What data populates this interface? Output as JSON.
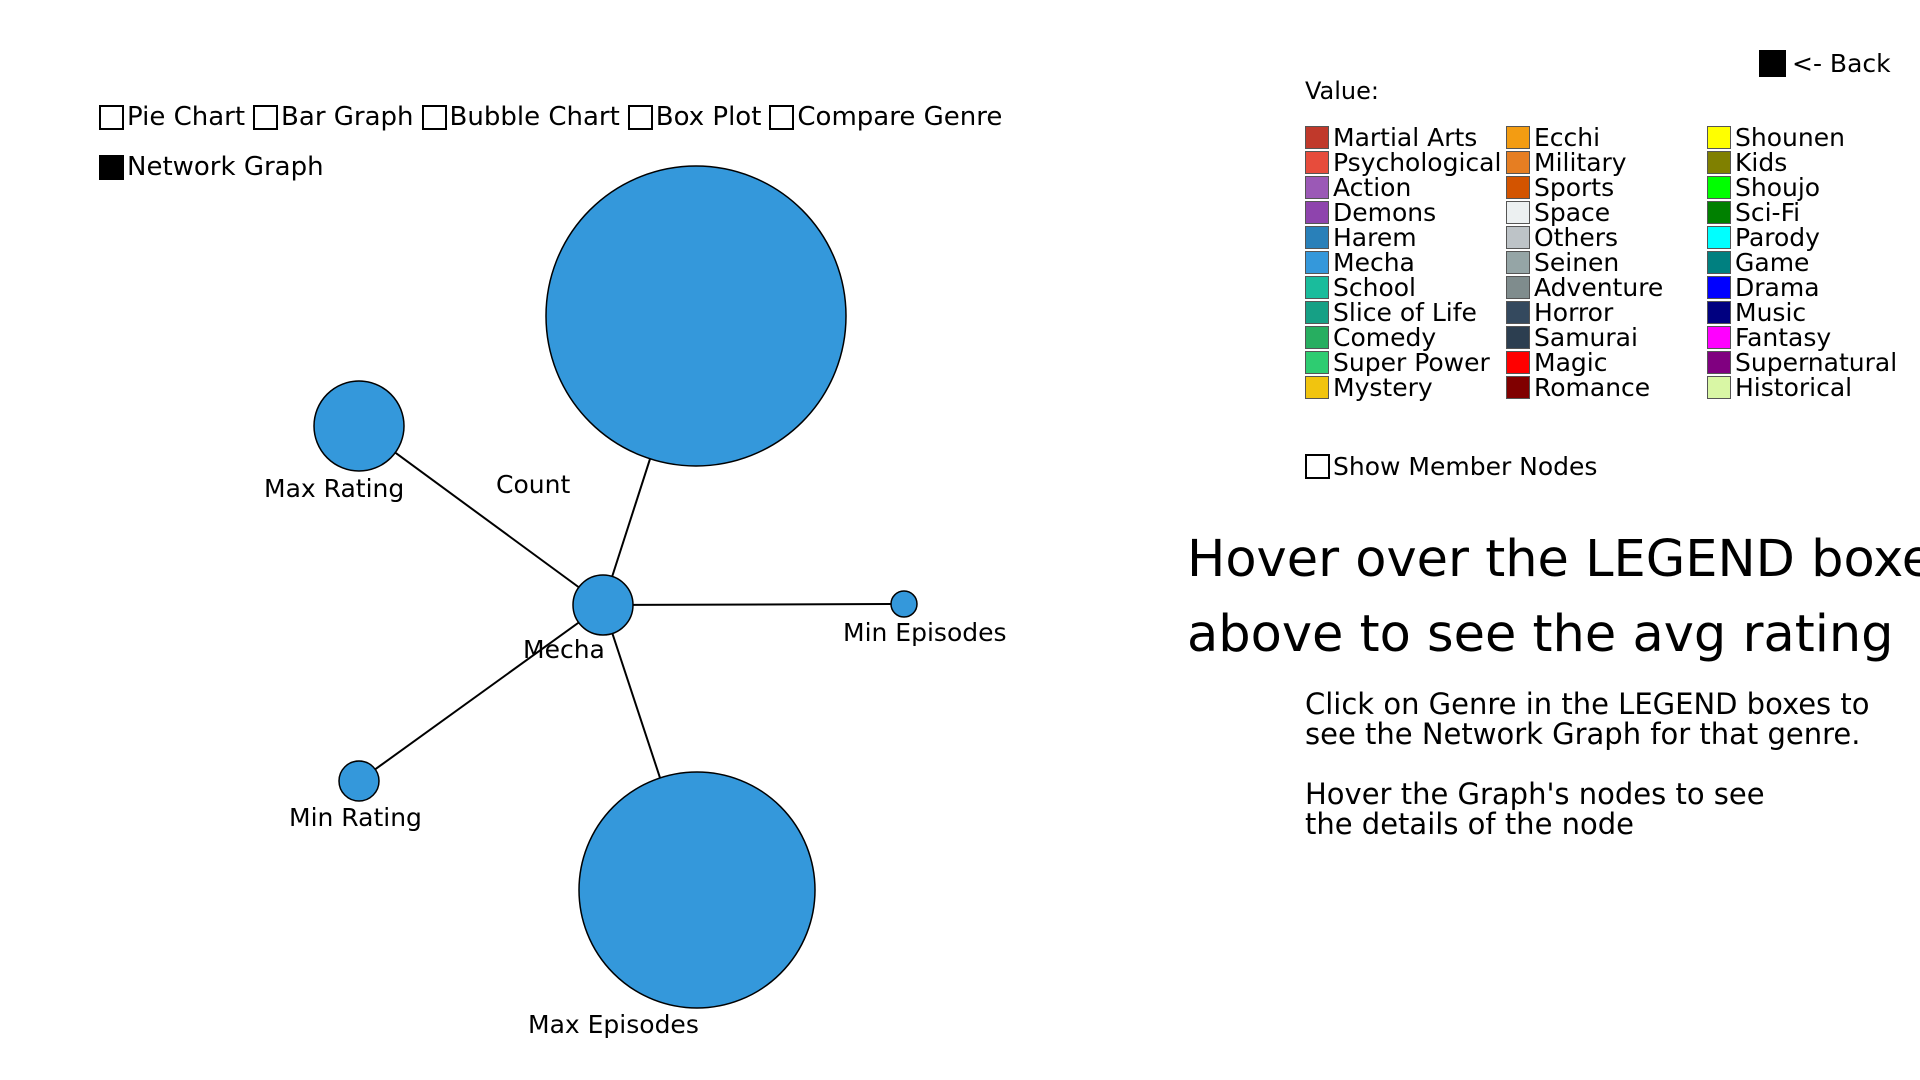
{
  "chart_options": {
    "items": [
      {
        "label": "Pie Chart",
        "checked": false
      },
      {
        "label": "Bar Graph",
        "checked": false
      },
      {
        "label": "Bubble Chart",
        "checked": false
      },
      {
        "label": "Box Plot",
        "checked": false
      },
      {
        "label": "Compare Genre",
        "checked": false
      },
      {
        "label": "Network Graph",
        "checked": true
      }
    ]
  },
  "back_label": "<- Back",
  "legend": {
    "title": "Value:",
    "columns": [
      [
        {
          "label": "Martial Arts",
          "color": "#c0392b"
        },
        {
          "label": "Psychological",
          "color": "#e74c3c"
        },
        {
          "label": "Action",
          "color": "#9b59b6"
        },
        {
          "label": "Demons",
          "color": "#8e44ad"
        },
        {
          "label": "Harem",
          "color": "#2980b9"
        },
        {
          "label": "Mecha",
          "color": "#3498db"
        },
        {
          "label": "School",
          "color": "#1abc9c"
        },
        {
          "label": "Slice of Life",
          "color": "#16a085"
        },
        {
          "label": "Comedy",
          "color": "#27ae60"
        },
        {
          "label": "Super Power",
          "color": "#2ecc71"
        },
        {
          "label": "Mystery",
          "color": "#f1c40f"
        }
      ],
      [
        {
          "label": "Ecchi",
          "color": "#f39c12"
        },
        {
          "label": "Military",
          "color": "#e67e22"
        },
        {
          "label": "Sports",
          "color": "#d35400"
        },
        {
          "label": "Space",
          "color": "#ecf0f1"
        },
        {
          "label": "Others",
          "color": "#bdc3c7"
        },
        {
          "label": "Seinen",
          "color": "#95a5a6"
        },
        {
          "label": "Adventure",
          "color": "#7f8c8d"
        },
        {
          "label": "Horror",
          "color": "#34495e"
        },
        {
          "label": "Samurai",
          "color": "#2c3e50"
        },
        {
          "label": "Magic",
          "color": "#ff0000"
        },
        {
          "label": "Romance",
          "color": "#800000"
        }
      ],
      [
        {
          "label": "Shounen",
          "color": "#ffff00"
        },
        {
          "label": "Kids",
          "color": "#808000"
        },
        {
          "label": "Shoujo",
          "color": "#00ff00"
        },
        {
          "label": "Sci-Fi",
          "color": "#008000"
        },
        {
          "label": "Parody",
          "color": "#00ffff"
        },
        {
          "label": "Game",
          "color": "#008080"
        },
        {
          "label": "Drama",
          "color": "#0000ff"
        },
        {
          "label": "Music",
          "color": "#000080"
        },
        {
          "label": "Fantasy",
          "color": "#ff00ff"
        },
        {
          "label": "Supernatural",
          "color": "#800080"
        },
        {
          "label": "Historical",
          "color": "#d9f7a5"
        }
      ]
    ]
  },
  "show_member_nodes": {
    "label": "Show Member Nodes",
    "checked": false
  },
  "hover_hint": {
    "line1": "Hover over the LEGEND boxes",
    "line2": "above to see the avg rating"
  },
  "instructions": {
    "click_line1": "Click on Genre in the LEGEND boxes to",
    "click_line2": "see the Network Graph for that genre.",
    "hover_line1": "Hover the Graph's nodes to see",
    "hover_line2": "the details of the node"
  },
  "network_graph": {
    "node_color": "#3498db",
    "center": {
      "label": "Mecha"
    },
    "nodes": [
      {
        "id": "count",
        "label": "Count"
      },
      {
        "id": "max_rating",
        "label": "Max Rating"
      },
      {
        "id": "min_episodes",
        "label": "Min Episodes"
      },
      {
        "id": "min_rating",
        "label": "Min Rating"
      },
      {
        "id": "max_episodes",
        "label": "Max Episodes"
      }
    ]
  }
}
